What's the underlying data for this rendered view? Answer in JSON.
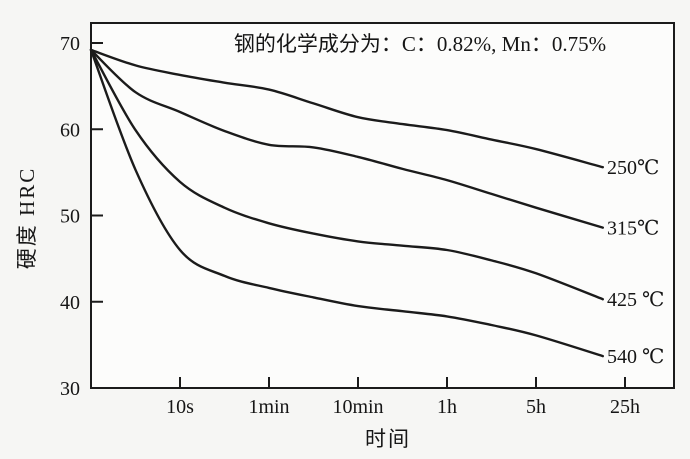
{
  "figure": {
    "kind": "tempering-hardness-curves",
    "background_color": "#f6f6f4",
    "plot_background_color": "#fcfcfb",
    "line_color": "#1b1b1b",
    "text_color": "#161616"
  },
  "chart_data": {
    "type": "line",
    "title": "钢的化学成分为：C：0.82%, Mn：0.75%",
    "xlabel": "时间",
    "ylabel": "硬度 HRC",
    "x_tick_labels": [
      "10s",
      "1min",
      "10min",
      "1h",
      "5h",
      "25h"
    ],
    "y_tick_labels": [
      "70",
      "60",
      "50",
      "40",
      "30"
    ],
    "ylim": [
      30,
      70
    ],
    "grid": false,
    "legend_position": "inline-right-curve-ends",
    "x_scale_note": "time ticks equally spaced (log-like: 10s to 25h); x unit below = tick index, 0 = left axis, 1 = 10s ... 6 = 25h",
    "series": [
      {
        "name": "250℃",
        "points": [
          [
            0,
            69.2
          ],
          [
            0.5,
            67.4
          ],
          [
            1,
            66.3
          ],
          [
            1.5,
            65.4
          ],
          [
            2,
            64.6
          ],
          [
            2.5,
            63.0
          ],
          [
            3,
            61.4
          ],
          [
            3.5,
            60.6
          ],
          [
            4,
            59.9
          ],
          [
            4.5,
            58.8
          ],
          [
            5,
            57.7
          ],
          [
            5.75,
            55.6
          ]
        ]
      },
      {
        "name": "315℃",
        "points": [
          [
            0,
            69.2
          ],
          [
            0.5,
            64.3
          ],
          [
            1,
            62.0
          ],
          [
            1.5,
            59.8
          ],
          [
            2,
            58.2
          ],
          [
            2.5,
            57.9
          ],
          [
            3,
            56.8
          ],
          [
            3.5,
            55.4
          ],
          [
            4,
            54.1
          ],
          [
            4.5,
            52.5
          ],
          [
            5,
            50.9
          ],
          [
            5.75,
            48.6
          ]
        ]
      },
      {
        "name": "425 ℃",
        "points": [
          [
            0,
            69.2
          ],
          [
            0.5,
            59.9
          ],
          [
            1,
            53.9
          ],
          [
            1.5,
            50.9
          ],
          [
            2,
            49.1
          ],
          [
            2.5,
            47.9
          ],
          [
            3,
            47.0
          ],
          [
            3.5,
            46.5
          ],
          [
            4,
            46.0
          ],
          [
            4.5,
            44.8
          ],
          [
            5,
            43.3
          ],
          [
            5.75,
            40.3
          ]
        ]
      },
      {
        "name": "540 ℃",
        "points": [
          [
            0,
            69.2
          ],
          [
            0.5,
            55.3
          ],
          [
            1,
            46.0
          ],
          [
            1.5,
            43.0
          ],
          [
            2,
            41.6
          ],
          [
            2.5,
            40.5
          ],
          [
            3,
            39.5
          ],
          [
            3.5,
            38.9
          ],
          [
            4,
            38.3
          ],
          [
            4.5,
            37.3
          ],
          [
            5,
            36.1
          ],
          [
            5.75,
            33.7
          ]
        ]
      }
    ]
  }
}
